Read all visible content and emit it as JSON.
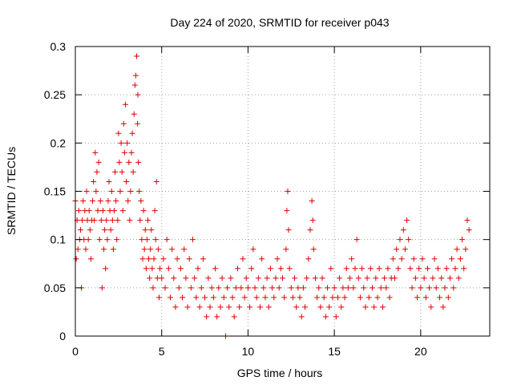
{
  "chart_data": {
    "type": "scatter",
    "title": "Day 224 of 2020, SRMTID for receiver p043",
    "xlabel": "GPS time / hours",
    "ylabel": "SRMTID / TECUs",
    "xlim": [
      0,
      24
    ],
    "ylim": [
      0,
      0.3
    ],
    "x_ticks": [
      0,
      5,
      10,
      15,
      20
    ],
    "x_tick_labels": [
      "0",
      "5",
      "10",
      "15",
      "20"
    ],
    "y_ticks": [
      0,
      0.05,
      0.1,
      0.15,
      0.2,
      0.25,
      0.3
    ],
    "y_tick_labels": [
      "0",
      "0.05",
      "0.1",
      "0.15",
      "0.2",
      "0.25",
      "0.3"
    ],
    "grid": true,
    "marker": "+",
    "marker_color": "#e00000",
    "series": [
      {
        "name": "SRMTID",
        "points": [
          [
            0.0,
            0.14
          ],
          [
            0.05,
            0.08
          ],
          [
            0.1,
            0.12
          ],
          [
            0.15,
            0.09
          ],
          [
            0.2,
            0.13
          ],
          [
            0.25,
            0.1
          ],
          [
            0.3,
            0.11
          ],
          [
            0.35,
            0.05
          ],
          [
            0.4,
            0.12
          ],
          [
            0.45,
            0.14
          ],
          [
            0.5,
            0.1
          ],
          [
            0.55,
            0.13
          ],
          [
            0.6,
            0.09
          ],
          [
            0.65,
            0.15
          ],
          [
            0.7,
            0.12
          ],
          [
            0.75,
            0.1
          ],
          [
            0.8,
            0.13
          ],
          [
            0.85,
            0.11
          ],
          [
            0.9,
            0.08
          ],
          [
            0.95,
            0.12
          ],
          [
            1.0,
            0.14
          ],
          [
            1.05,
            0.16
          ],
          [
            1.1,
            0.12
          ],
          [
            1.15,
            0.19
          ],
          [
            1.2,
            0.15
          ],
          [
            1.25,
            0.17
          ],
          [
            1.3,
            0.13
          ],
          [
            1.35,
            0.18
          ],
          [
            1.4,
            0.1
          ],
          [
            1.45,
            0.14
          ],
          [
            1.5,
            0.12
          ],
          [
            1.55,
            0.05
          ],
          [
            1.6,
            0.13
          ],
          [
            1.65,
            0.09
          ],
          [
            1.7,
            0.11
          ],
          [
            1.75,
            0.07
          ],
          [
            1.8,
            0.12
          ],
          [
            1.85,
            0.1
          ],
          [
            1.9,
            0.14
          ],
          [
            1.95,
            0.16
          ],
          [
            2.0,
            0.13
          ],
          [
            2.05,
            0.11
          ],
          [
            2.1,
            0.15
          ],
          [
            2.15,
            0.12
          ],
          [
            2.2,
            0.09
          ],
          [
            2.25,
            0.13
          ],
          [
            2.3,
            0.17
          ],
          [
            2.35,
            0.14
          ],
          [
            2.4,
            0.1
          ],
          [
            2.45,
            0.12
          ],
          [
            2.5,
            0.21
          ],
          [
            2.55,
            0.18
          ],
          [
            2.6,
            0.15
          ],
          [
            2.65,
            0.2
          ],
          [
            2.7,
            0.17
          ],
          [
            2.75,
            0.13
          ],
          [
            2.8,
            0.22
          ],
          [
            2.85,
            0.19
          ],
          [
            2.9,
            0.24
          ],
          [
            2.95,
            0.16
          ],
          [
            3.0,
            0.2
          ],
          [
            3.05,
            0.14
          ],
          [
            3.1,
            0.18
          ],
          [
            3.15,
            0.12
          ],
          [
            3.2,
            0.15
          ],
          [
            3.25,
            0.19
          ],
          [
            3.3,
            0.21
          ],
          [
            3.35,
            0.17
          ],
          [
            3.4,
            0.23
          ],
          [
            3.45,
            0.26
          ],
          [
            3.5,
            0.27
          ],
          [
            3.55,
            0.29
          ],
          [
            3.6,
            0.22
          ],
          [
            3.62,
            0.25
          ],
          [
            3.65,
            0.18
          ],
          [
            3.7,
            0.15
          ],
          [
            3.75,
            0.12
          ],
          [
            3.8,
            0.14
          ],
          [
            3.85,
            0.1
          ],
          [
            3.9,
            0.08
          ],
          [
            3.95,
            0.13
          ],
          [
            4.0,
            0.09
          ],
          [
            4.05,
            0.11
          ],
          [
            4.1,
            0.07
          ],
          [
            4.15,
            0.1
          ],
          [
            4.2,
            0.12
          ],
          [
            4.25,
            0.08
          ],
          [
            4.3,
            0.06
          ],
          [
            4.35,
            0.09
          ],
          [
            4.4,
            0.11
          ],
          [
            4.45,
            0.07
          ],
          [
            4.5,
            0.05
          ],
          [
            4.55,
            0.08
          ],
          [
            4.6,
            0.13
          ],
          [
            4.65,
            0.1
          ],
          [
            4.7,
            0.16
          ],
          [
            4.75,
            0.06
          ],
          [
            4.8,
            0.09
          ],
          [
            4.85,
            0.04
          ],
          [
            4.9,
            0.07
          ],
          [
            5.0,
            0.06
          ],
          [
            5.1,
            0.08
          ],
          [
            5.2,
            0.05
          ],
          [
            5.3,
            0.1
          ],
          [
            5.4,
            0.07
          ],
          [
            5.5,
            0.04
          ],
          [
            5.6,
            0.09
          ],
          [
            5.7,
            0.06
          ],
          [
            5.8,
            0.03
          ],
          [
            5.9,
            0.08
          ],
          [
            6.0,
            0.05
          ],
          [
            6.1,
            0.07
          ],
          [
            6.2,
            0.04
          ],
          [
            6.3,
            0.09
          ],
          [
            6.4,
            0.06
          ],
          [
            6.5,
            0.03
          ],
          [
            6.6,
            0.08
          ],
          [
            6.7,
            0.05
          ],
          [
            6.8,
            0.1
          ],
          [
            6.9,
            0.06
          ],
          [
            7.0,
            0.04
          ],
          [
            7.1,
            0.07
          ],
          [
            7.2,
            0.03
          ],
          [
            7.3,
            0.05
          ],
          [
            7.4,
            0.08
          ],
          [
            7.5,
            0.04
          ],
          [
            7.6,
            0.02
          ],
          [
            7.7,
            0.06
          ],
          [
            7.8,
            0.03
          ],
          [
            7.9,
            0.05
          ],
          [
            8.0,
            0.04
          ],
          [
            8.1,
            0.07
          ],
          [
            8.2,
            0.02
          ],
          [
            8.3,
            0.05
          ],
          [
            8.4,
            0.03
          ],
          [
            8.5,
            0.06
          ],
          [
            8.6,
            0.04
          ],
          [
            8.7,
            0.0
          ],
          [
            8.8,
            0.05
          ],
          [
            8.9,
            0.03
          ],
          [
            9.0,
            0.06
          ],
          [
            9.1,
            0.04
          ],
          [
            9.2,
            0.02
          ],
          [
            9.3,
            0.05
          ],
          [
            9.4,
            0.07
          ],
          [
            9.5,
            0.03
          ],
          [
            9.6,
            0.05
          ],
          [
            9.7,
            0.08
          ],
          [
            9.8,
            0.04
          ],
          [
            9.9,
            0.06
          ],
          [
            10.0,
            0.05
          ],
          [
            10.1,
            0.03
          ],
          [
            10.2,
            0.07
          ],
          [
            10.3,
            0.09
          ],
          [
            10.4,
            0.05
          ],
          [
            10.5,
            0.04
          ],
          [
            10.6,
            0.06
          ],
          [
            10.7,
            0.03
          ],
          [
            10.8,
            0.08
          ],
          [
            10.9,
            0.05
          ],
          [
            11.0,
            0.04
          ],
          [
            11.1,
            0.06
          ],
          [
            11.2,
            0.03
          ],
          [
            11.3,
            0.07
          ],
          [
            11.4,
            0.05
          ],
          [
            11.5,
            0.04
          ],
          [
            11.6,
            0.06
          ],
          [
            11.7,
            0.08
          ],
          [
            11.8,
            0.05
          ],
          [
            11.9,
            0.07
          ],
          [
            12.0,
            0.06
          ],
          [
            12.1,
            0.04
          ],
          [
            12.2,
            0.09
          ],
          [
            12.25,
            0.13
          ],
          [
            12.3,
            0.15
          ],
          [
            12.35,
            0.11
          ],
          [
            12.4,
            0.07
          ],
          [
            12.5,
            0.05
          ],
          [
            12.6,
            0.04
          ],
          [
            12.7,
            0.06
          ],
          [
            12.8,
            0.03
          ],
          [
            12.9,
            0.05
          ],
          [
            13.0,
            0.04
          ],
          [
            13.1,
            0.02
          ],
          [
            13.2,
            0.05
          ],
          [
            13.3,
            0.03
          ],
          [
            13.4,
            0.06
          ],
          [
            13.5,
            0.08
          ],
          [
            13.6,
            0.11
          ],
          [
            13.7,
            0.14
          ],
          [
            13.75,
            0.12
          ],
          [
            13.8,
            0.09
          ],
          [
            13.9,
            0.06
          ],
          [
            14.0,
            0.04
          ],
          [
            14.1,
            0.05
          ],
          [
            14.2,
            0.03
          ],
          [
            14.3,
            0.06
          ],
          [
            14.4,
            0.04
          ],
          [
            14.5,
            0.02
          ],
          [
            14.6,
            0.05
          ],
          [
            14.7,
            0.03
          ],
          [
            14.8,
            0.07
          ],
          [
            14.9,
            0.04
          ],
          [
            15.0,
            0.05
          ],
          [
            15.1,
            0.02
          ],
          [
            15.2,
            0.04
          ],
          [
            15.3,
            0.06
          ],
          [
            15.4,
            0.03
          ],
          [
            15.5,
            0.05
          ],
          [
            15.6,
            0.04
          ],
          [
            15.7,
            0.07
          ],
          [
            15.8,
            0.05
          ],
          [
            15.9,
            0.06
          ],
          [
            16.0,
            0.08
          ],
          [
            16.1,
            0.05
          ],
          [
            16.2,
            0.07
          ],
          [
            16.3,
            0.1
          ],
          [
            16.4,
            0.06
          ],
          [
            16.5,
            0.04
          ],
          [
            16.6,
            0.07
          ],
          [
            16.7,
            0.05
          ],
          [
            16.8,
            0.03
          ],
          [
            16.9,
            0.06
          ],
          [
            17.0,
            0.04
          ],
          [
            17.1,
            0.07
          ],
          [
            17.2,
            0.05
          ],
          [
            17.3,
            0.03
          ],
          [
            17.4,
            0.06
          ],
          [
            17.5,
            0.04
          ],
          [
            17.6,
            0.07
          ],
          [
            17.7,
            0.05
          ],
          [
            17.8,
            0.03
          ],
          [
            17.9,
            0.06
          ],
          [
            18.0,
            0.05
          ],
          [
            18.1,
            0.07
          ],
          [
            18.2,
            0.04
          ],
          [
            18.3,
            0.06
          ],
          [
            18.4,
            0.08
          ],
          [
            18.5,
            0.06
          ],
          [
            18.6,
            0.09
          ],
          [
            18.7,
            0.07
          ],
          [
            18.8,
            0.1
          ],
          [
            18.9,
            0.08
          ],
          [
            19.0,
            0.11
          ],
          [
            19.1,
            0.09
          ],
          [
            19.2,
            0.12
          ],
          [
            19.3,
            0.1
          ],
          [
            19.4,
            0.07
          ],
          [
            19.5,
            0.05
          ],
          [
            19.6,
            0.08
          ],
          [
            19.7,
            0.06
          ],
          [
            19.8,
            0.04
          ],
          [
            19.9,
            0.07
          ],
          [
            20.0,
            0.05
          ],
          [
            20.1,
            0.08
          ],
          [
            20.2,
            0.06
          ],
          [
            20.3,
            0.04
          ],
          [
            20.4,
            0.07
          ],
          [
            20.5,
            0.05
          ],
          [
            20.6,
            0.03
          ],
          [
            20.7,
            0.06
          ],
          [
            20.8,
            0.08
          ],
          [
            20.9,
            0.05
          ],
          [
            21.0,
            0.07
          ],
          [
            21.1,
            0.04
          ],
          [
            21.2,
            0.06
          ],
          [
            21.3,
            0.03
          ],
          [
            21.4,
            0.05
          ],
          [
            21.5,
            0.07
          ],
          [
            21.6,
            0.04
          ],
          [
            21.7,
            0.06
          ],
          [
            21.8,
            0.08
          ],
          [
            21.9,
            0.05
          ],
          [
            22.0,
            0.07
          ],
          [
            22.1,
            0.09
          ],
          [
            22.2,
            0.06
          ],
          [
            22.3,
            0.08
          ],
          [
            22.4,
            0.1
          ],
          [
            22.5,
            0.07
          ],
          [
            22.6,
            0.09
          ],
          [
            22.7,
            0.12
          ],
          [
            22.8,
            0.11
          ]
        ]
      }
    ]
  }
}
